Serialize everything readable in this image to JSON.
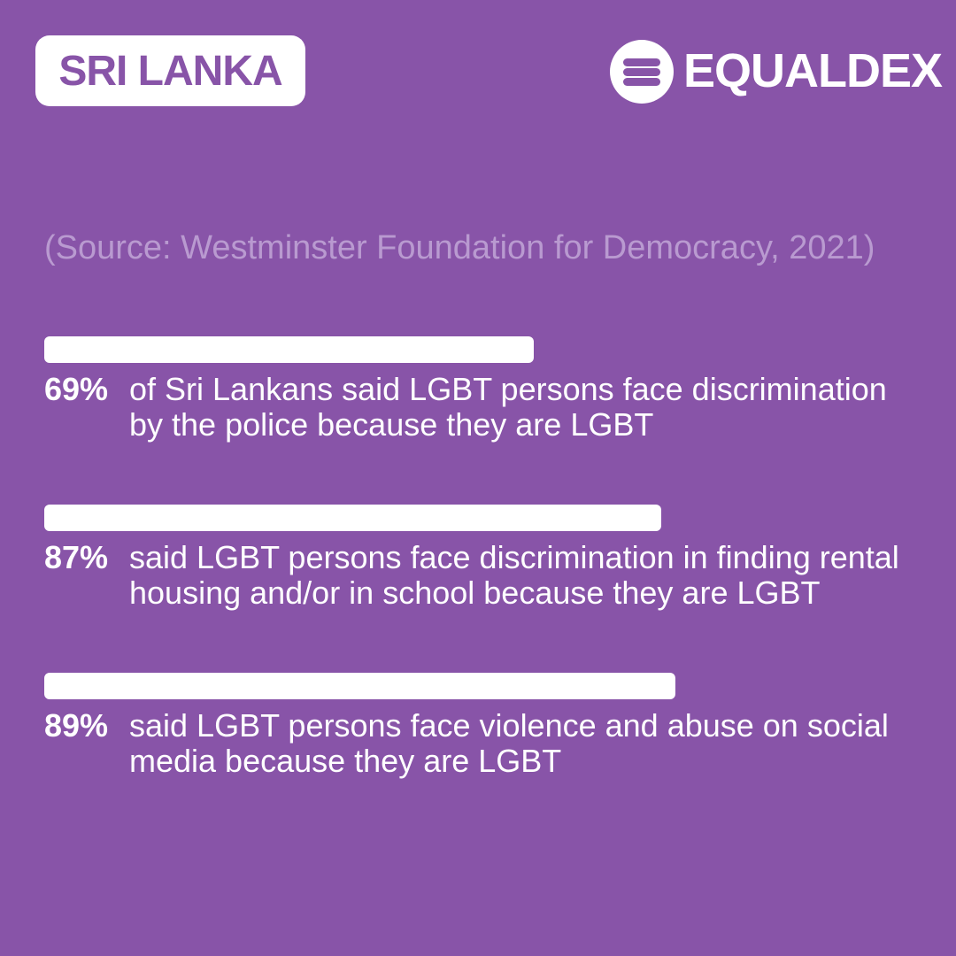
{
  "chart_data": {
    "type": "bar",
    "title": "SRI LANKA",
    "brand": "EQUALDEX",
    "source": "(Source: Westminster Foundation for Democracy, 2021)",
    "categories": [
      "of Sri Lankans said LGBT persons face discrimination by the police because they are LGBT",
      "said LGBT persons face discrimination in finding rental housing and/or in school because they are LGBT",
      "said LGBT persons face violence and abuse on social media because they are LGBT"
    ],
    "values": [
      69,
      87,
      89
    ],
    "value_labels": [
      "69%",
      "87%",
      "89%"
    ],
    "color": "#ffffff",
    "xlim": [
      0,
      100
    ]
  }
}
